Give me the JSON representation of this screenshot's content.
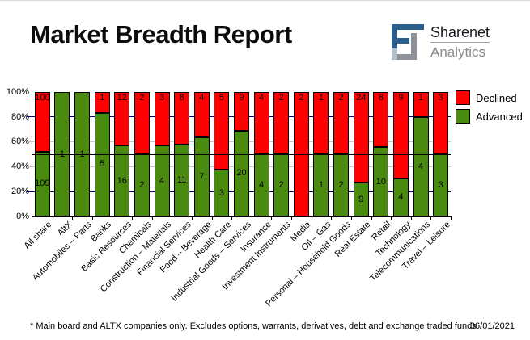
{
  "header": {
    "title": "Market Breadth Report",
    "logo": {
      "brand": "Sharenet",
      "sub": "Analytics"
    }
  },
  "chart_data": {
    "type": "bar",
    "stacked": true,
    "percent_scale": true,
    "title": "Market Breadth Report",
    "categories": [
      "All share",
      "AltX",
      "Automobiles – Parts",
      "Banks",
      "Basic Resources",
      "Chemicals",
      "Construction – Materials",
      "Financial Services",
      "Food – Beverage",
      "Health Care",
      "Industrial Goods – Services",
      "Insurance",
      "Investment Instruments",
      "Media",
      "Oil – Gas",
      "Personal – Household Goods",
      "Real Estate",
      "Retail",
      "Technology",
      "Telecommunications",
      "Travel – Leisure"
    ],
    "series": [
      {
        "name": "Declined",
        "color": "#ff0000",
        "values": [
          100,
          0,
          0,
          1,
          12,
          2,
          3,
          8,
          4,
          5,
          9,
          4,
          2,
          2,
          1,
          2,
          24,
          8,
          9,
          1,
          3
        ]
      },
      {
        "name": "Advanced",
        "color": "#4a8b0f",
        "values": [
          109,
          1,
          1,
          5,
          16,
          2,
          4,
          11,
          7,
          3,
          20,
          4,
          2,
          0,
          1,
          2,
          9,
          10,
          4,
          4,
          3
        ]
      }
    ],
    "ylim": [
      0,
      100
    ],
    "yticks": [
      "100%",
      "80%",
      "60%",
      "40%",
      "20%",
      "0%"
    ],
    "gridlines": {
      "navy_pcts": [
        80,
        20
      ],
      "silver_pcts": [
        60,
        40
      ],
      "black_line_pct": 50
    },
    "legend_position": "top-right"
  },
  "legend": {
    "items": [
      {
        "label": "Declined",
        "color": "#ff0000"
      },
      {
        "label": "Advanced",
        "color": "#4a8b0f"
      }
    ]
  },
  "footnote": {
    "text": "* Main board and ALTX companies only. Excludes options, warrants, derivatives, debt and exchange traded funds",
    "date": "06/01/2021"
  }
}
